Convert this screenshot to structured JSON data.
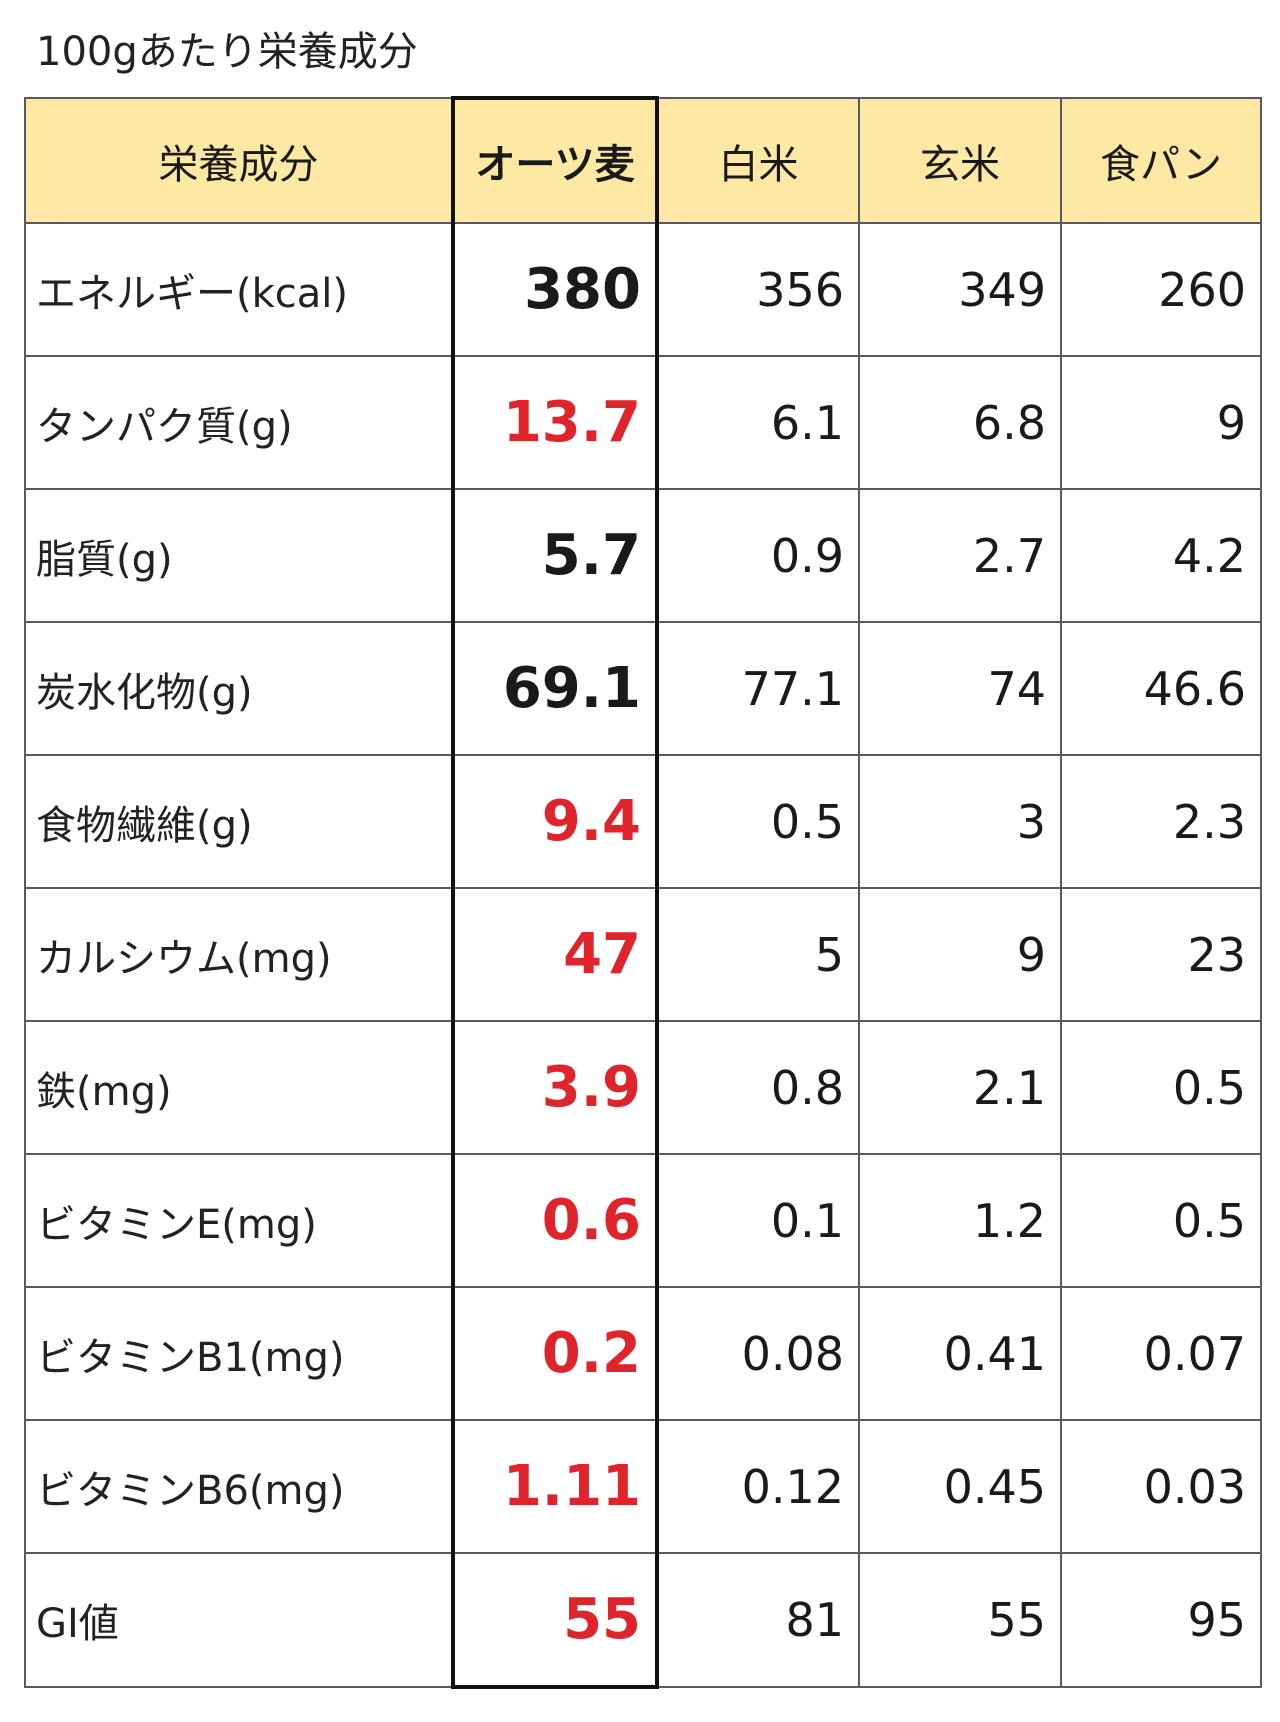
{
  "chart_data": {
    "type": "table",
    "title": "100gあたり栄養成分",
    "columns": [
      "栄養成分",
      "オーツ麦",
      "白米",
      "玄米",
      "食パン"
    ],
    "rows": [
      {
        "label": "エネルギー(kcal)",
        "oats": "380",
        "white_rice": "356",
        "brown_rice": "349",
        "bread": "260",
        "oats_highlight": false
      },
      {
        "label": "タンパク質(g)",
        "oats": "13.7",
        "white_rice": "6.1",
        "brown_rice": "6.8",
        "bread": "9",
        "oats_highlight": true
      },
      {
        "label": "脂質(g)",
        "oats": "5.7",
        "white_rice": "0.9",
        "brown_rice": "2.7",
        "bread": "4.2",
        "oats_highlight": false
      },
      {
        "label": "炭水化物(g)",
        "oats": "69.1",
        "white_rice": "77.1",
        "brown_rice": "74",
        "bread": "46.6",
        "oats_highlight": false
      },
      {
        "label": "食物繊維(g)",
        "oats": "9.4",
        "white_rice": "0.5",
        "brown_rice": "3",
        "bread": "2.3",
        "oats_highlight": true
      },
      {
        "label": "カルシウム(mg)",
        "oats": "47",
        "white_rice": "5",
        "brown_rice": "9",
        "bread": "23",
        "oats_highlight": true
      },
      {
        "label": "鉄(mg)",
        "oats": "3.9",
        "white_rice": "0.8",
        "brown_rice": "2.1",
        "bread": "0.5",
        "oats_highlight": true
      },
      {
        "label": "ビタミンE(mg)",
        "oats": "0.6",
        "white_rice": "0.1",
        "brown_rice": "1.2",
        "bread": "0.5",
        "oats_highlight": true
      },
      {
        "label": "ビタミンB1(mg)",
        "oats": "0.2",
        "white_rice": "0.08",
        "brown_rice": "0.41",
        "bread": "0.07",
        "oats_highlight": true
      },
      {
        "label": "ビタミンB6(mg)",
        "oats": "1.11",
        "white_rice": "0.12",
        "brown_rice": "0.45",
        "bread": "0.03",
        "oats_highlight": true
      },
      {
        "label": "GI値",
        "oats": "55",
        "white_rice": "81",
        "brown_rice": "55",
        "bread": "95",
        "oats_highlight": true
      }
    ]
  },
  "colors": {
    "header_background": "#fde9a3",
    "highlight_text": "#e0242b",
    "normal_text": "#1a1a1a",
    "grid_line": "#5a5a5a",
    "oat_column_frame": "#111111"
  }
}
